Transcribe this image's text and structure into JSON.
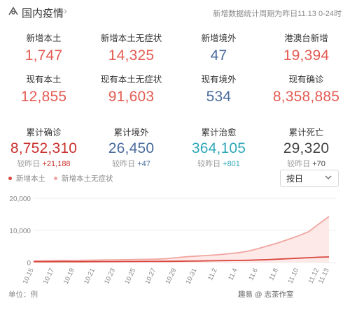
{
  "header": {
    "title": "国内疫情",
    "note": "新增数据统计周期为昨日11.13 0-24时"
  },
  "row1": [
    {
      "label": "新增本土",
      "value": "1,747",
      "color": "#e45b52"
    },
    {
      "label": "新增本土无症状",
      "value": "14,325",
      "color": "#e45b52"
    },
    {
      "label": "新增境外",
      "value": "47",
      "color": "#4a6b9c"
    },
    {
      "label": "港澳台新增",
      "value": "19,394",
      "color": "#e45b52"
    }
  ],
  "row2": [
    {
      "label": "现有本土",
      "value": "12,855",
      "color": "#e45b52"
    },
    {
      "label": "现有本土无症状",
      "value": "91,603",
      "color": "#e45b52"
    },
    {
      "label": "现有境外",
      "value": "534",
      "color": "#4a6b9c"
    },
    {
      "label": "现有确诊",
      "value": "8,358,885",
      "color": "#e45b52"
    }
  ],
  "row3": [
    {
      "label": "累计确诊",
      "value": "8,752,310",
      "delta_prefix": "较昨日",
      "delta": "+21,188",
      "color": "#c9302c"
    },
    {
      "label": "累计境外",
      "value": "26,450",
      "delta_prefix": "较昨日",
      "delta": "+47",
      "color": "#4a6b9c"
    },
    {
      "label": "累计治愈",
      "value": "364,105",
      "delta_prefix": "较昨日",
      "delta": "+801",
      "color": "#2ea7b8"
    },
    {
      "label": "累计死亡",
      "value": "29,320",
      "delta_prefix": "较昨日",
      "delta": "+70",
      "color": "#444444"
    }
  ],
  "legend": [
    {
      "name": "新增本土",
      "color": "#d9463d"
    },
    {
      "name": "新增本土无症状",
      "color": "#f0a5a0"
    }
  ],
  "select": {
    "value": "按日"
  },
  "unit_label": "单位：例",
  "watermark": "趣易 @ 志茶作室",
  "chart_data": {
    "type": "line",
    "x": [
      "10.15",
      "10.16",
      "10.17",
      "10.18",
      "10.19",
      "10.20",
      "10.21",
      "10.22",
      "10.23",
      "10.24",
      "10.25",
      "10.26",
      "10.27",
      "10.28",
      "10.29",
      "10.30",
      "10.31",
      "11.1",
      "11.2",
      "11.3",
      "11.4",
      "11.5",
      "11.6",
      "11.7",
      "11.8",
      "11.9",
      "11.10",
      "11.11",
      "11.12",
      "11.13"
    ],
    "xticks": [
      "10.15",
      "10.17",
      "10.19",
      "10.21",
      "10.23",
      "10.25",
      "10.27",
      "10.29",
      "10.31",
      "11.2",
      "11.4",
      "11.6",
      "11.8",
      "11.10",
      "11.12",
      "11.13"
    ],
    "ylim": [
      0,
      20000
    ],
    "yticks": [
      "0",
      "10,000",
      "20,000"
    ],
    "series": [
      {
        "name": "新增本土",
        "color": "#d9463d",
        "values": [
          250,
          260,
          270,
          280,
          260,
          270,
          290,
          300,
          310,
          320,
          330,
          340,
          350,
          380,
          400,
          430,
          460,
          520,
          560,
          600,
          650,
          700,
          800,
          900,
          1050,
          1200,
          1350,
          1500,
          1650,
          1747
        ]
      },
      {
        "name": "新增本土无症状",
        "color": "#f0a5a0",
        "values": [
          500,
          550,
          600,
          650,
          650,
          700,
          750,
          800,
          850,
          900,
          950,
          1000,
          1050,
          1200,
          1500,
          1800,
          2000,
          2200,
          2400,
          2700,
          3000,
          3500,
          4300,
          5200,
          6100,
          7200,
          8300,
          9600,
          12000,
          14325
        ]
      }
    ]
  }
}
